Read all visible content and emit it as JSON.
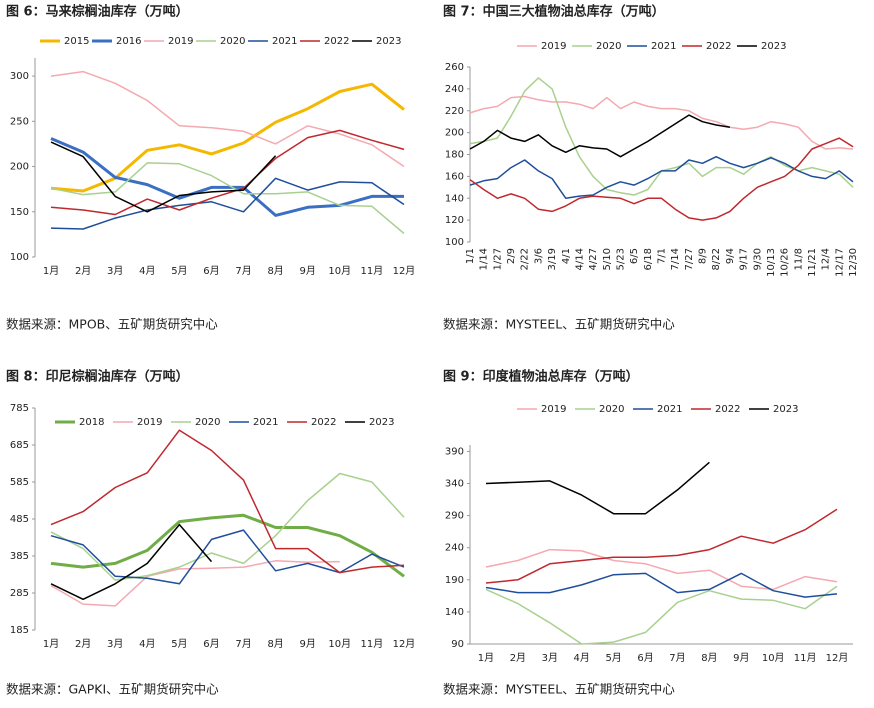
{
  "chart_data": [
    {
      "type": "line",
      "title": "图 6：马来棕榈油库存（万吨）",
      "source": "数据来源：MPOB、五矿期货研究中心",
      "categories": [
        "1月",
        "2月",
        "3月",
        "4月",
        "5月",
        "6月",
        "7月",
        "8月",
        "9月",
        "10月",
        "11月",
        "12月"
      ],
      "ylim": [
        100,
        320
      ],
      "yticks": [
        100,
        150,
        200,
        250,
        300
      ],
      "series": [
        {
          "name": "2015",
          "color": "#f5b800",
          "bold": true,
          "values": [
            176,
            173,
            187,
            218,
            224,
            214,
            226,
            249,
            264,
            283,
            291,
            263
          ]
        },
        {
          "name": "2016",
          "color": "#3a6fc4",
          "bold": true,
          "values": [
            231,
            216,
            188,
            180,
            165,
            177,
            177,
            146,
            155,
            157,
            167,
            167
          ]
        },
        {
          "name": "2019",
          "color": "#f4a9b0",
          "values": [
            300,
            305,
            292,
            273,
            245,
            243,
            239,
            225,
            245,
            236,
            224,
            200
          ]
        },
        {
          "name": "2020",
          "color": "#a9d18e",
          "values": [
            176,
            169,
            172,
            204,
            203,
            190,
            170,
            170,
            172,
            157,
            156,
            126
          ]
        },
        {
          "name": "2021",
          "color": "#1f4e9a",
          "values": [
            132,
            131,
            143,
            152,
            157,
            161,
            150,
            187,
            174,
            183,
            182,
            158
          ]
        },
        {
          "name": "2022",
          "color": "#c0282d",
          "values": [
            155,
            152,
            147,
            164,
            152,
            165,
            176,
            209,
            232,
            240,
            229,
            219
          ]
        },
        {
          "name": "2023",
          "color": "#000000",
          "values": [
            227,
            211,
            167,
            150,
            168,
            172,
            174,
            212,
            null,
            null,
            null,
            null
          ]
        }
      ]
    },
    {
      "type": "line",
      "title": "图 7：中国三大植物油总库存（万吨）",
      "source": "数据来源：MYSTEEL、五矿期货研究中心",
      "categories": [
        "1/1",
        "1/14",
        "1/27",
        "2/9",
        "2/22",
        "3/6",
        "3/19",
        "4/1",
        "4/14",
        "4/27",
        "5/10",
        "5/23",
        "6/5",
        "6/18",
        "7/1",
        "7/14",
        "7/27",
        "8/9",
        "8/22",
        "9/4",
        "9/17",
        "9/30",
        "10/13",
        "10/26",
        "11/8",
        "11/21",
        "12/4",
        "12/17",
        "12/30"
      ],
      "ylim": [
        100,
        260
      ],
      "yticks": [
        100,
        120,
        140,
        160,
        180,
        200,
        220,
        240,
        260
      ],
      "series": [
        {
          "name": "2019",
          "color": "#f4a9b0",
          "values": [
            218,
            222,
            224,
            232,
            233,
            230,
            228,
            228,
            226,
            222,
            232,
            222,
            228,
            224,
            222,
            222,
            220,
            213,
            210,
            205,
            203,
            205,
            210,
            208,
            205,
            192,
            185,
            186,
            185
          ]
        },
        {
          "name": "2020",
          "color": "#a9d18e",
          "values": [
            190,
            192,
            195,
            215,
            238,
            250,
            240,
            205,
            178,
            160,
            148,
            145,
            143,
            148,
            165,
            168,
            172,
            160,
            168,
            168,
            162,
            172,
            178,
            170,
            165,
            168,
            165,
            162,
            150
          ]
        },
        {
          "name": "2021",
          "color": "#1f4e9a",
          "values": [
            152,
            156,
            158,
            168,
            175,
            165,
            158,
            140,
            142,
            143,
            150,
            155,
            152,
            158,
            165,
            165,
            175,
            172,
            178,
            172,
            168,
            172,
            177,
            172,
            165,
            160,
            158,
            165,
            155
          ]
        },
        {
          "name": "2022",
          "color": "#c0282d",
          "values": [
            157,
            148,
            140,
            144,
            140,
            130,
            128,
            133,
            140,
            142,
            141,
            140,
            135,
            140,
            140,
            130,
            122,
            120,
            122,
            128,
            140,
            150,
            155,
            160,
            170,
            185,
            190,
            195,
            187
          ]
        },
        {
          "name": "2023",
          "color": "#000000",
          "values": [
            185,
            192,
            202,
            195,
            192,
            198,
            188,
            182,
            188,
            186,
            185,
            178,
            185,
            192,
            200,
            208,
            216,
            210,
            207,
            205,
            null,
            null,
            null,
            null,
            null,
            null,
            null,
            null,
            null
          ]
        }
      ]
    },
    {
      "type": "line",
      "title": "图 8：印尼棕榈油库存（万吨）",
      "source": "数据来源：GAPKI、五矿期货研究中心",
      "categories": [
        "1月",
        "2月",
        "3月",
        "4月",
        "5月",
        "6月",
        "7月",
        "8月",
        "9月",
        "10月",
        "11月",
        "12月"
      ],
      "ylim": [
        185,
        785
      ],
      "yticks": [
        185,
        285,
        385,
        485,
        585,
        685,
        785
      ],
      "series": [
        {
          "name": "2018",
          "color": "#70ad47",
          "bold": true,
          "values": [
            365,
            355,
            365,
            400,
            478,
            488,
            495,
            462,
            462,
            440,
            395,
            330
          ]
        },
        {
          "name": "2019",
          "color": "#f4a9b0",
          "values": [
            305,
            255,
            250,
            330,
            350,
            352,
            355,
            372,
            368,
            370,
            null,
            null
          ]
        },
        {
          "name": "2020",
          "color": "#a9d18e",
          "values": [
            450,
            405,
            320,
            332,
            355,
            393,
            365,
            440,
            535,
            608,
            585,
            490
          ]
        },
        {
          "name": "2021",
          "color": "#1f4e9a",
          "values": [
            440,
            415,
            330,
            325,
            310,
            430,
            455,
            345,
            365,
            340,
            390,
            355
          ]
        },
        {
          "name": "2022",
          "color": "#c0282d",
          "values": [
            470,
            505,
            570,
            610,
            725,
            670,
            590,
            405,
            405,
            340,
            355,
            360
          ]
        },
        {
          "name": "2023",
          "color": "#000000",
          "values": [
            310,
            268,
            310,
            365,
            470,
            370,
            null,
            null,
            null,
            null,
            null,
            null
          ]
        }
      ]
    },
    {
      "type": "line",
      "title": "图 9：印度植物油总库存（万吨）",
      "source": "数据来源：MYSTEEL、五矿期货研究中心",
      "categories": [
        "1月",
        "2月",
        "3月",
        "4月",
        "5月",
        "6月",
        "7月",
        "8月",
        "9月",
        "10月",
        "11月",
        "12月"
      ],
      "ylim": [
        90,
        400
      ],
      "yticks": [
        90,
        140,
        190,
        240,
        290,
        340,
        390
      ],
      "series": [
        {
          "name": "2019",
          "color": "#f4a9b0",
          "values": [
            210,
            220,
            237,
            235,
            220,
            215,
            200,
            205,
            180,
            175,
            195,
            187
          ]
        },
        {
          "name": "2020",
          "color": "#a9d18e",
          "values": [
            175,
            153,
            123,
            90,
            93,
            108,
            155,
            173,
            160,
            158,
            145,
            180
          ]
        },
        {
          "name": "2021",
          "color": "#1f4e9a",
          "values": [
            178,
            170,
            170,
            182,
            198,
            200,
            170,
            175,
            200,
            173,
            163,
            168
          ]
        },
        {
          "name": "2022",
          "color": "#c0282d",
          "values": [
            185,
            190,
            215,
            220,
            225,
            225,
            228,
            237,
            258,
            247,
            268,
            300
          ]
        },
        {
          "name": "2023",
          "color": "#000000",
          "values": [
            340,
            342,
            344,
            322,
            293,
            293,
            330,
            373,
            null,
            null,
            null,
            null
          ]
        }
      ]
    }
  ]
}
